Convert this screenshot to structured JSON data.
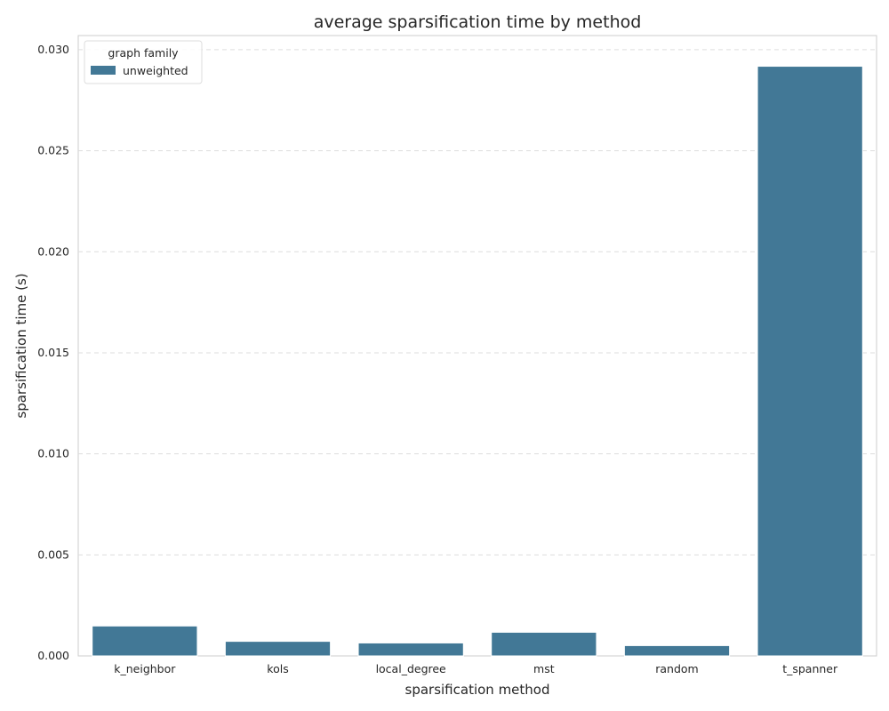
{
  "chart_data": {
    "type": "bar",
    "title": "average sparsification time by method",
    "xlabel": "sparsification method",
    "ylabel": "sparsification time (s)",
    "categories": [
      "k_neighbor",
      "kols",
      "local_degree",
      "mst",
      "random",
      "t_spanner"
    ],
    "series": [
      {
        "name": "unweighted",
        "color": "#427896",
        "values": [
          0.00148,
          0.00072,
          0.00064,
          0.00117,
          0.00051,
          0.02918
        ]
      }
    ],
    "ylim": [
      0,
      0.0307
    ],
    "yticks": [
      "0.000",
      "0.005",
      "0.010",
      "0.015",
      "0.020",
      "0.025",
      "0.030"
    ],
    "grid": "horizontal dashed",
    "legend": {
      "title": "graph family",
      "placement": "top-left"
    }
  }
}
